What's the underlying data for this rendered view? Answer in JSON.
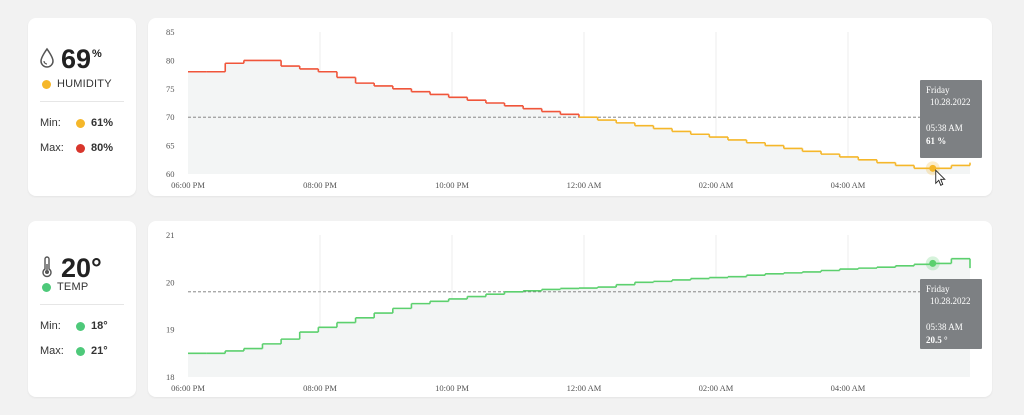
{
  "humidity": {
    "value": "69",
    "unit": "%",
    "label": "HUMIDITY",
    "color": "#f5b72a",
    "icon": "droplet-icon",
    "min_label": "Min:",
    "min_value": "61%",
    "min_color": "#f5b72a",
    "max_label": "Max:",
    "max_value": "80%",
    "max_color": "#d8362c"
  },
  "temp": {
    "value": "20°",
    "label": "TEMP",
    "color": "#4ec97a",
    "icon": "thermometer-icon",
    "min_label": "Min:",
    "min_value": "18°",
    "min_color": "#4ec97a",
    "max_label": "Max:",
    "max_value": "21°",
    "max_color": "#4ec97a"
  },
  "chart_data": [
    {
      "type": "line",
      "series": [
        {
          "values": [
            78,
            78,
            79.5,
            80,
            80,
            79,
            78.5,
            78,
            77,
            76,
            75.5,
            75,
            74.5,
            74,
            73.5,
            73,
            72.5,
            72,
            71.5,
            71,
            70.5,
            70,
            69.5,
            69,
            68.5,
            68,
            67.5,
            67,
            66.5,
            66,
            65.5,
            65,
            64.5,
            64,
            63.5,
            63,
            62.5,
            62,
            61.5,
            61,
            61,
            61.5,
            62
          ]
        }
      ],
      "x_tick_labels": [
        "06:00 PM",
        "08:00 PM",
        "10:00 PM",
        "12:00 AM",
        "02:00 AM",
        "04:00 AM"
      ],
      "ylim": [
        60,
        85
      ],
      "y_tick_labels": [
        "60",
        "65",
        "70",
        "75",
        "80",
        "85"
      ],
      "avg_line": 70,
      "line_color_high": "#f0553a",
      "line_color_low": "#f5b72a",
      "color_threshold": 70.5,
      "tooltip": {
        "day": "Friday",
        "date": "10.28.2022",
        "time": "05:38 AM",
        "value": "61 %"
      }
    },
    {
      "type": "line",
      "series": [
        {
          "values": [
            18.5,
            18.5,
            18.55,
            18.6,
            18.7,
            18.8,
            18.95,
            19.05,
            19.15,
            19.25,
            19.35,
            19.45,
            19.55,
            19.6,
            19.65,
            19.7,
            19.75,
            19.8,
            19.82,
            19.85,
            19.87,
            19.88,
            19.9,
            19.95,
            20.0,
            20.02,
            20.05,
            20.08,
            20.1,
            20.12,
            20.15,
            20.18,
            20.2,
            20.22,
            20.25,
            20.28,
            20.3,
            20.32,
            20.35,
            20.38,
            20.4,
            20.5,
            20.3
          ]
        }
      ],
      "x_tick_labels": [
        "06:00 PM",
        "08:00 PM",
        "10:00 PM",
        "12:00 AM",
        "02:00 AM",
        "04:00 AM"
      ],
      "ylim": [
        18,
        21
      ],
      "y_tick_labels": [
        "18",
        "19",
        "20",
        "21"
      ],
      "avg_line": 19.8,
      "line_color": "#5cd06e",
      "tooltip": {
        "day": "Friday",
        "date": "10.28.2022",
        "time": "05:38 AM",
        "value": "20.5 °"
      }
    }
  ]
}
